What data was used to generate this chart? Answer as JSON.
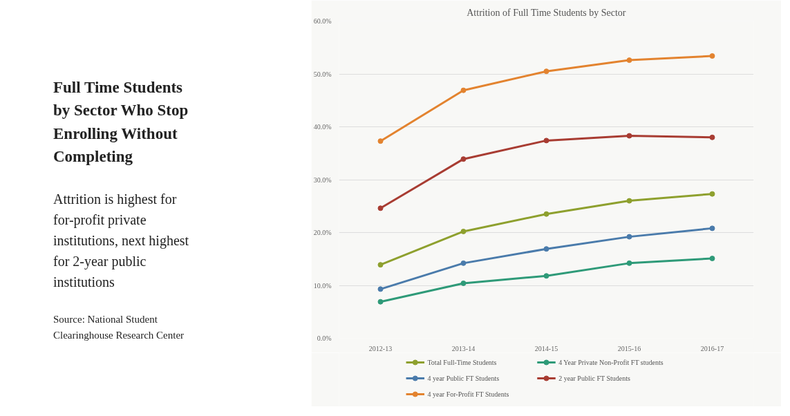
{
  "chart_data": {
    "type": "line",
    "title": "Attrition of Full Time Students by Sector",
    "subtitle": "Full Time Students by Sector Who Stop Enrolling Without Completing",
    "annotations": [
      "Attrition is highest for for-profit private institutions, next highest for 2-year public institutions",
      "Source:  National Student Clearinghouse Research Center"
    ],
    "categories": [
      "2012-13",
      "2013-14",
      "2014-15",
      "2015-16",
      "2016-17"
    ],
    "series": [
      {
        "name": "Total Full-Time Students",
        "color": "#8ea02e",
        "values": [
          13.9,
          20.2,
          23.5,
          26.0,
          27.3
        ]
      },
      {
        "name": "4 Year Private Non-Profit FT students",
        "color": "#2e9a78",
        "values": [
          6.9,
          10.4,
          11.8,
          14.2,
          15.1
        ]
      },
      {
        "name": "4 year Public FT Students",
        "color": "#4a7bab",
        "values": [
          9.3,
          14.2,
          16.9,
          19.2,
          20.8
        ]
      },
      {
        "name": "2 year Public FT Students",
        "color": "#a83c32",
        "values": [
          24.6,
          33.9,
          37.4,
          38.3,
          38.0
        ]
      },
      {
        "name": "4 year For-Profit FT Students",
        "color": "#e3832f",
        "values": [
          37.3,
          46.9,
          50.5,
          52.6,
          53.4
        ]
      }
    ],
    "ylim": [
      0,
      60
    ],
    "yticks": [
      {
        "value": 0,
        "label": "0.0%"
      },
      {
        "value": 10,
        "label": "10.0%"
      },
      {
        "value": 20,
        "label": "20.0%"
      },
      {
        "value": 30,
        "label": "30.0%"
      },
      {
        "value": 40,
        "label": "40.0%"
      },
      {
        "value": 50,
        "label": "50.0%"
      },
      {
        "value": 60,
        "label": "60.0%"
      }
    ],
    "grid": "y",
    "legend": "bottom",
    "marker": "circle",
    "line_style": "solid"
  }
}
